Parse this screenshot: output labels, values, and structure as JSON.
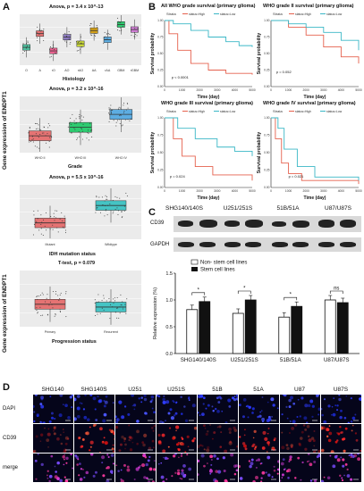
{
  "figure": {
    "panel_labels": [
      "A",
      "B",
      "C",
      "D"
    ]
  },
  "panel_a": {
    "plots": [
      {
        "stat": "Anova, p = 3.4 x 10^-13",
        "xlabel": "Histology",
        "categories": [
          "O",
          "A",
          "rO",
          "AO",
          "rAO",
          "AA",
          "rAA",
          "GBM",
          "rGBM"
        ],
        "colors": [
          "#4fc3a1",
          "#e57373",
          "#f06292",
          "#8e7cc3",
          "#cddc39",
          "#d4a017",
          "#5dade2",
          "#2ecc71",
          "#d17fd6"
        ]
      },
      {
        "stat": "Anova, p = 3.2 x 10^-16",
        "xlabel": "Grade",
        "categories": [
          "WHO II",
          "WHO III",
          "WHO IV"
        ],
        "colors": [
          "#e57373",
          "#2ecc71",
          "#5dade2"
        ]
      },
      {
        "stat": "Anova, p = 5.5 x 10^-16",
        "xlabel": "IDH mutation status",
        "categories": [
          "Mutant",
          "Wildtype"
        ],
        "colors": [
          "#e57373",
          "#45c4c4"
        ]
      },
      {
        "stat": "T-test, p = 0.079",
        "xlabel": "Progression status",
        "categories": [
          "Primary",
          "Recurrent"
        ],
        "colors": [
          "#e57373",
          "#45c4c4"
        ]
      }
    ],
    "ylabel": "Gene expression of ENDPT1"
  },
  "panel_b": {
    "plots": [
      {
        "title": "All WHO grade survival (primary glioma)",
        "pval": "p < 0.0001"
      },
      {
        "title": "WHO grade II survival (primary glioma)",
        "pval": "p = 0.052"
      },
      {
        "title": "WHO grade III survival (primary glioma)",
        "pval": "p = 0.024"
      },
      {
        "title": "WHO grade IV survival (primary glioma)",
        "pval": "p = 0.021"
      }
    ],
    "ylabel": "Survival probability",
    "xlabel": "Time (day)",
    "strata": "Strata",
    "legend_high": "status=High",
    "legend_low": "status=Low",
    "colors": {
      "high": "#e5604d",
      "low": "#3ab7c6"
    }
  },
  "panel_c": {
    "groups": [
      "SHG140/140S",
      "U251/251S",
      "51B/51A",
      "U87/U87S"
    ],
    "blot_rows": [
      "CD39",
      "GAPDH"
    ],
    "legend": [
      "Non- stem cell lines",
      "Stem cell lines"
    ],
    "ylabel": "Relative expression (%)",
    "sig": [
      "*",
      "*",
      "*",
      "ns"
    ],
    "chart_data": {
      "type": "bar",
      "categories": [
        "SHG140/140S",
        "U251/251S",
        "51B/51A",
        "U87/U87S"
      ],
      "series": [
        {
          "name": "Non- stem cell lines",
          "values": [
            0.82,
            0.75,
            0.68,
            1.0
          ],
          "color": "#ffffff"
        },
        {
          "name": "Stem cell lines",
          "values": [
            0.97,
            1.0,
            0.88,
            0.95
          ],
          "color": "#111111"
        }
      ],
      "ylabel": "Relative expression (%)",
      "ylim": [
        0,
        1.5
      ],
      "yticks": [
        "0.0",
        "0.5",
        "1.0",
        "1.5"
      ]
    }
  },
  "panel_d": {
    "columns": [
      "SHG140",
      "SHG140S",
      "U251",
      "U251S",
      "51B",
      "51A",
      "U87",
      "U87S"
    ],
    "rows": [
      "DAPI",
      "CD39",
      "merge"
    ]
  }
}
